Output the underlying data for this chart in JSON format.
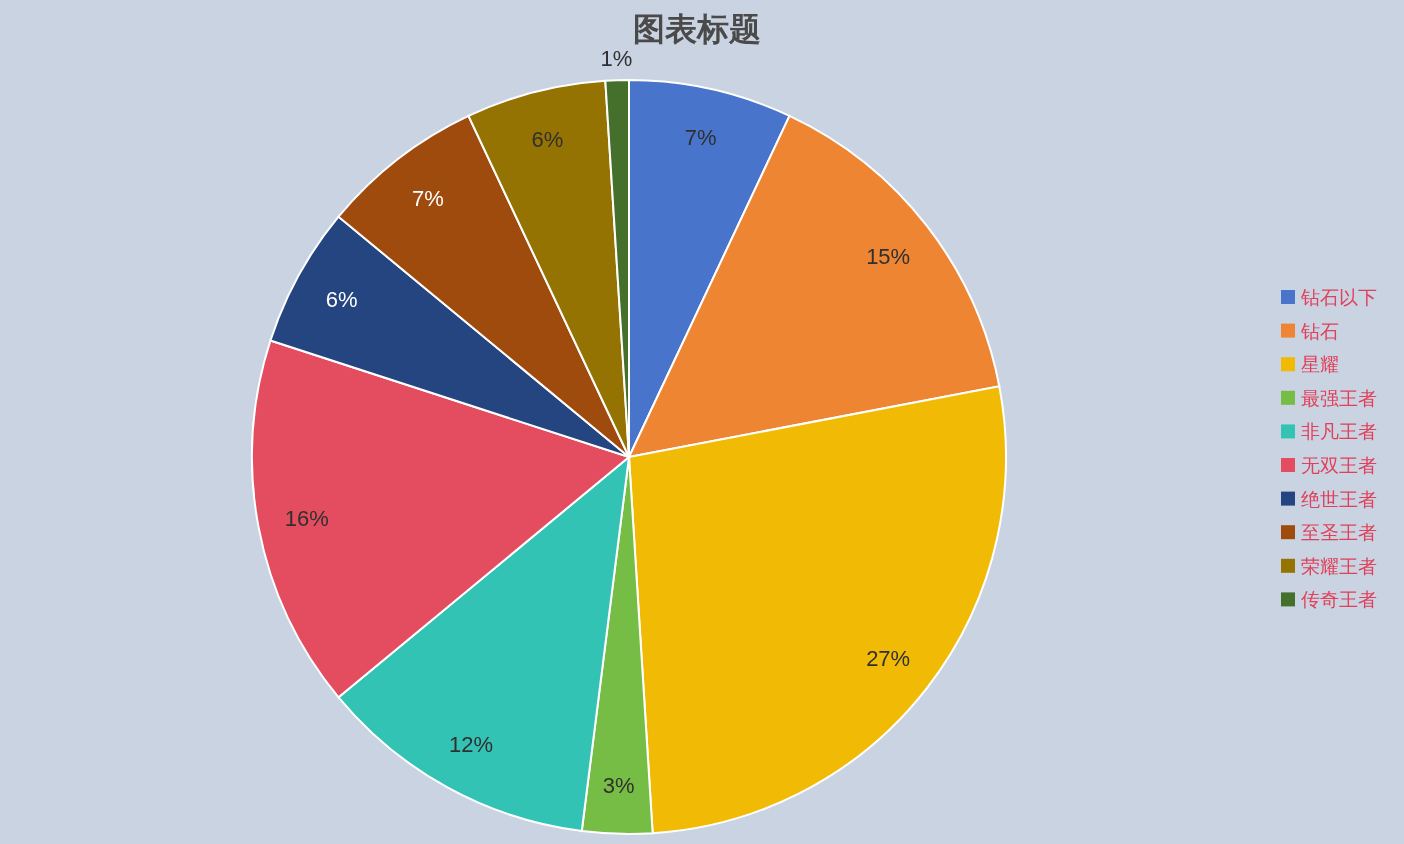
{
  "chart_data": {
    "type": "pie",
    "title": "图表标题",
    "categories": [
      "钻石以下",
      "钻石",
      "星耀",
      "最强王者",
      "非凡王者",
      "无双王者",
      "绝世王者",
      "至圣王者",
      "荣耀王者",
      "传奇王者"
    ],
    "values": [
      7,
      15,
      27,
      3,
      12,
      16,
      6,
      7,
      6,
      1
    ],
    "colors": [
      "#4874cb",
      "#ee8533",
      "#f1ba04",
      "#76bd45",
      "#33c3b5",
      "#e34d5f",
      "#254580",
      "#9f4b0d",
      "#957302",
      "#44702c"
    ],
    "value_labels": [
      "7%",
      "15%",
      "27%",
      "3%",
      "12%",
      "16%",
      "6%",
      "7%",
      "6%",
      "1%"
    ],
    "legend": "right"
  }
}
